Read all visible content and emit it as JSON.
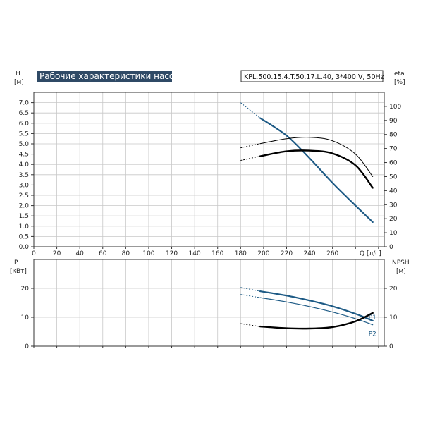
{
  "header": {
    "title": "Рабочие характеристики насоса",
    "model": "KPL.500.15.4.T.50.17.L.40, 3*400 V, 50Hz"
  },
  "colors": {
    "curve_blue": "#1d5a85",
    "curve_black": "#000000",
    "grid": "#c8c8c8",
    "title_bg": "#2f4a66"
  },
  "chart_data": [
    {
      "type": "line",
      "name": "top-chart",
      "left_axis": {
        "label": "H",
        "unit": "[м]",
        "range": [
          0,
          7.5
        ],
        "ticks": [
          "0.0",
          "0.5",
          "1.0",
          "1.5",
          "2.0",
          "2.5",
          "3.0",
          "3.5",
          "4.0",
          "4.5",
          "5.0",
          "5.5",
          "6.0",
          "6.5",
          "7.0"
        ]
      },
      "right_axis": {
        "label": "eta",
        "unit": "[%]",
        "range": [
          0,
          110
        ],
        "ticks": [
          "0",
          "10",
          "20",
          "30",
          "40",
          "50",
          "60",
          "70",
          "80",
          "90",
          "100"
        ]
      },
      "x_axis": {
        "label": "Q [л/с]",
        "range": [
          0,
          305
        ],
        "ticks": [
          "0",
          "20",
          "40",
          "60",
          "80",
          "100",
          "120",
          "140",
          "160",
          "180",
          "200",
          "220",
          "240",
          "260"
        ]
      },
      "grid": true,
      "series": [
        {
          "axis": "left",
          "style": "blue-thick",
          "points": [
            [
              197,
              6.25
            ],
            [
              220,
              5.4
            ],
            [
              240,
              4.3
            ],
            [
              260,
              3.1
            ],
            [
              280,
              2.0
            ],
            [
              295,
              1.2
            ]
          ],
          "extension": [
            [
              180,
              7.0
            ],
            [
              197,
              6.25
            ]
          ]
        },
        {
          "axis": "right",
          "style": "black-thin",
          "points": [
            [
              197,
              73.5
            ],
            [
              220,
              77
            ],
            [
              240,
              78
            ],
            [
              260,
              75.5
            ],
            [
              280,
              66
            ],
            [
              295,
              50
            ]
          ],
          "extension": [
            [
              180,
              70.5
            ],
            [
              197,
              73.5
            ]
          ]
        },
        {
          "axis": "right",
          "style": "black-thick",
          "points": [
            [
              197,
              64.5
            ],
            [
              220,
              68
            ],
            [
              240,
              68.5
            ],
            [
              260,
              66.5
            ],
            [
              280,
              58
            ],
            [
              295,
              42
            ]
          ],
          "extension": [
            [
              180,
              61.5
            ],
            [
              197,
              64.5
            ]
          ]
        }
      ]
    },
    {
      "type": "line",
      "name": "bottom-chart",
      "left_axis": {
        "label": "P",
        "unit": "[кВт]",
        "range": [
          0,
          30
        ],
        "ticks": [
          "0",
          "10",
          "20"
        ]
      },
      "right_axis": {
        "label": "NPSH",
        "unit": "[м]",
        "range": [
          0,
          30
        ],
        "ticks": [
          "0",
          "10",
          "20"
        ]
      },
      "x_axis": {
        "range": [
          0,
          305
        ]
      },
      "grid": true,
      "series": [
        {
          "name": "P1",
          "axis": "left",
          "style": "blue-thick",
          "points": [
            [
              197,
              19.0
            ],
            [
              220,
              17.5
            ],
            [
              240,
              15.8
            ],
            [
              260,
              13.8
            ],
            [
              280,
              11.2
            ],
            [
              295,
              8.8
            ]
          ],
          "extension": [
            [
              180,
              20.3
            ],
            [
              197,
              19.0
            ]
          ]
        },
        {
          "name": "P2",
          "axis": "left",
          "style": "blue-thin",
          "points": [
            [
              197,
              16.8
            ],
            [
              220,
              15.3
            ],
            [
              240,
              13.7
            ],
            [
              260,
              11.8
            ],
            [
              280,
              9.5
            ],
            [
              295,
              7.4
            ]
          ],
          "extension": [
            [
              180,
              17.9
            ],
            [
              197,
              16.8
            ]
          ]
        },
        {
          "axis": "right",
          "style": "black-thick",
          "points": [
            [
              197,
              6.8
            ],
            [
              220,
              6.2
            ],
            [
              240,
              6.1
            ],
            [
              260,
              6.6
            ],
            [
              280,
              8.6
            ],
            [
              295,
              11.5
            ]
          ],
          "extension": [
            [
              180,
              7.8
            ],
            [
              197,
              6.8
            ]
          ]
        }
      ]
    }
  ]
}
